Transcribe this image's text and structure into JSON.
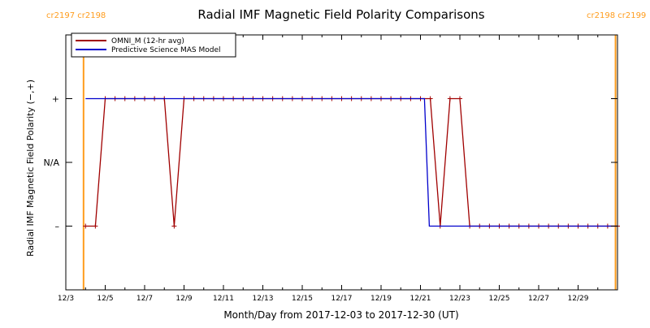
{
  "chart_data": {
    "type": "line",
    "title": "Radial IMF Magnetic Field Polarity Comparisons",
    "xlabel": "Month/Day from 2017-12-03 to 2017-12-30 (UT)",
    "ylabel": "Radial IMF Magnetic Field Polarity (−,+)",
    "x_range_days": [
      0,
      28
    ],
    "ylim": [
      -2,
      2
    ],
    "x_ticks": [
      {
        "day": 0,
        "label": "12/3"
      },
      {
        "day": 2,
        "label": "12/5"
      },
      {
        "day": 4,
        "label": "12/7"
      },
      {
        "day": 6,
        "label": "12/9"
      },
      {
        "day": 8,
        "label": "12/11"
      },
      {
        "day": 10,
        "label": "12/13"
      },
      {
        "day": 12,
        "label": "12/15"
      },
      {
        "day": 14,
        "label": "12/17"
      },
      {
        "day": 16,
        "label": "12/19"
      },
      {
        "day": 18,
        "label": "12/21"
      },
      {
        "day": 20,
        "label": "12/23"
      },
      {
        "day": 22,
        "label": "12/25"
      },
      {
        "day": 24,
        "label": "12/27"
      },
      {
        "day": 26,
        "label": "12/29"
      }
    ],
    "y_ticks": [
      {
        "value": 1,
        "label": "+"
      },
      {
        "value": 0,
        "label": "N/A"
      },
      {
        "value": -1,
        "label": "–"
      }
    ],
    "carrington_markers": [
      {
        "day": 0.9,
        "label_left": "cr2197",
        "label_right": "cr2198"
      },
      {
        "day": 27.9,
        "label_left": "cr2198",
        "label_right": "cr2199"
      }
    ],
    "marker_color": "#ff9c1c",
    "legend_position": "top-left",
    "series": [
      {
        "name": "OMNI_M (12-hr avg)",
        "color": "#a00000",
        "points": [
          [
            1.0,
            -1
          ],
          [
            1.5,
            -1
          ],
          [
            2.0,
            1
          ],
          [
            2.5,
            1
          ],
          [
            3.0,
            1
          ],
          [
            3.5,
            1
          ],
          [
            4.0,
            1
          ],
          [
            4.5,
            1
          ],
          [
            5.0,
            1
          ],
          [
            5.5,
            -1
          ],
          [
            6.0,
            1
          ],
          [
            6.5,
            1
          ],
          [
            7.0,
            1
          ],
          [
            7.5,
            1
          ],
          [
            8.0,
            1
          ],
          [
            8.5,
            1
          ],
          [
            9.0,
            1
          ],
          [
            9.5,
            1
          ],
          [
            10.0,
            1
          ],
          [
            10.5,
            1
          ],
          [
            11.0,
            1
          ],
          [
            11.5,
            1
          ],
          [
            12.0,
            1
          ],
          [
            12.5,
            1
          ],
          [
            13.0,
            1
          ],
          [
            13.5,
            1
          ],
          [
            14.0,
            1
          ],
          [
            14.5,
            1
          ],
          [
            15.0,
            1
          ],
          [
            15.5,
            1
          ],
          [
            16.0,
            1
          ],
          [
            16.5,
            1
          ],
          [
            17.0,
            1
          ],
          [
            17.5,
            1
          ],
          [
            18.0,
            1
          ],
          [
            18.5,
            1
          ],
          [
            19.0,
            -1
          ],
          [
            19.5,
            1
          ],
          [
            20.0,
            1
          ],
          [
            20.5,
            -1
          ],
          [
            21.0,
            -1
          ],
          [
            21.5,
            -1
          ],
          [
            22.0,
            -1
          ],
          [
            22.5,
            -1
          ],
          [
            23.0,
            -1
          ],
          [
            23.5,
            -1
          ],
          [
            24.0,
            -1
          ],
          [
            24.5,
            -1
          ],
          [
            25.0,
            -1
          ],
          [
            25.5,
            -1
          ],
          [
            26.0,
            -1
          ],
          [
            26.5,
            -1
          ],
          [
            27.0,
            -1
          ],
          [
            27.5,
            -1
          ],
          [
            28.0,
            -1
          ]
        ]
      },
      {
        "name": "Predictive Science MAS Model",
        "color": "#0000cc",
        "points": [
          [
            1.0,
            1
          ],
          [
            18.2,
            1
          ],
          [
            18.45,
            -1
          ],
          [
            28.0,
            -1
          ]
        ]
      }
    ]
  }
}
